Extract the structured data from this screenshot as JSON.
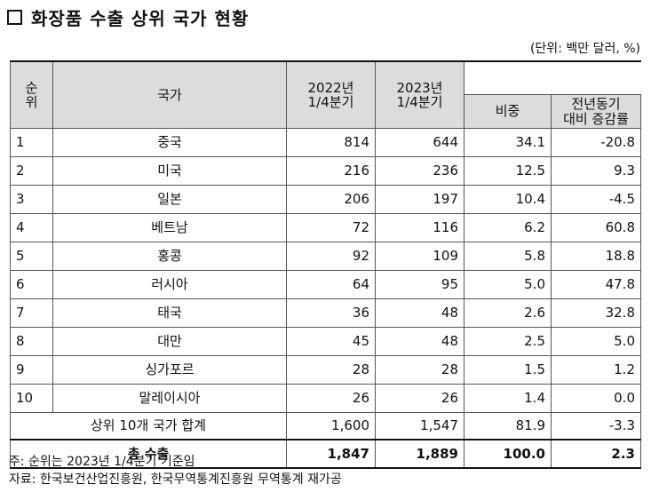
{
  "title": "화장품 수출 상위 국가 현황",
  "unit": "(단위: 백만 달러, %)",
  "headers": {
    "rank": "순\n위",
    "country": "국가",
    "q2022": "2022년\n1/4분기",
    "q2023": "2023년\n1/4분기",
    "share": "비중",
    "yoy": "전년동기\n대비 증감률"
  },
  "rows": [
    {
      "rank": "1",
      "country": "중국",
      "q2022": "814",
      "q2023": "644",
      "share": "34.1",
      "yoy": "-20.8"
    },
    {
      "rank": "2",
      "country": "미국",
      "q2022": "216",
      "q2023": "236",
      "share": "12.5",
      "yoy": "9.3"
    },
    {
      "rank": "3",
      "country": "일본",
      "q2022": "206",
      "q2023": "197",
      "share": "10.4",
      "yoy": "-4.5"
    },
    {
      "rank": "4",
      "country": "베트남",
      "q2022": "72",
      "q2023": "116",
      "share": "6.2",
      "yoy": "60.8"
    },
    {
      "rank": "5",
      "country": "홍콩",
      "q2022": "92",
      "q2023": "109",
      "share": "5.8",
      "yoy": "18.8"
    },
    {
      "rank": "6",
      "country": "러시아",
      "q2022": "64",
      "q2023": "95",
      "share": "5.0",
      "yoy": "47.8"
    },
    {
      "rank": "7",
      "country": "태국",
      "q2022": "36",
      "q2023": "48",
      "share": "2.6",
      "yoy": "32.8"
    },
    {
      "rank": "8",
      "country": "대만",
      "q2022": "45",
      "q2023": "48",
      "share": "2.5",
      "yoy": "5.0"
    },
    {
      "rank": "9",
      "country": "싱가포르",
      "q2022": "28",
      "q2023": "28",
      "share": "1.5",
      "yoy": "1.2"
    },
    {
      "rank": "10",
      "country": "말레이시아",
      "q2022": "26",
      "q2023": "26",
      "share": "1.4",
      "yoy": "0.0"
    }
  ],
  "subtotal": {
    "label": "상위 10개 국가 합계",
    "q2022": "1,600",
    "q2023": "1,547",
    "share": "81.9",
    "yoy": "-3.3"
  },
  "total": {
    "label": "총 수출",
    "q2022": "1,847",
    "q2023": "1,889",
    "share": "100.0",
    "yoy": "2.3"
  },
  "notes": [
    "주: 순위는 2023년 1/4분기 기준임",
    "자료: 한국보건산업진흥원, 한국무역통계진흥원 무역통계 재가공"
  ]
}
